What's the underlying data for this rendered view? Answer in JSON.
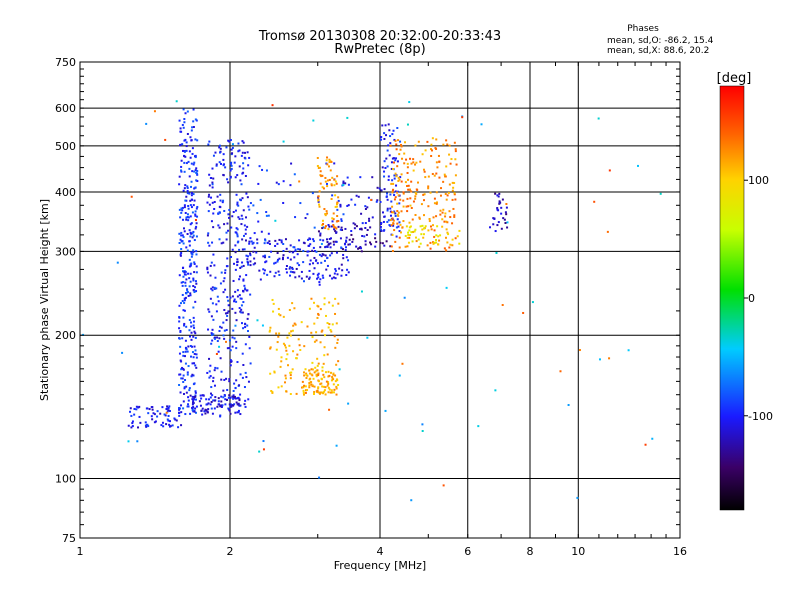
{
  "chart_data": {
    "type": "scatter",
    "title": "Tromsø 20130308 20:32:00-20:33:43",
    "subtitle": "RwPretec (8p)",
    "xlabel": "Frequency [MHz]",
    "ylabel": "Stationary phase Virtual Height [km]",
    "x_scale": "log2",
    "y_scale": "log",
    "xlim": [
      1,
      16
    ],
    "ylim": [
      75,
      750
    ],
    "x_ticks": [
      1,
      2,
      4,
      6,
      8,
      10,
      16
    ],
    "x_tick_labels": [
      "1",
      "2",
      "4",
      "6",
      "8",
      "10",
      "16"
    ],
    "y_ticks": [
      75,
      100,
      200,
      300,
      400,
      500,
      600,
      750
    ],
    "y_tick_labels": [
      "75",
      "100",
      "200",
      "300",
      "400",
      "500",
      "600",
      "750"
    ],
    "grid": true,
    "stats": {
      "heading": "Phases",
      "line_o": "mean, sd,O: -86.2, 15.4",
      "line_x": "mean, sd,X:  88.6, 20.2"
    },
    "colorbar": {
      "label": "[deg]",
      "min": -180,
      "max": 180,
      "ticks": [
        100,
        0,
        -100
      ],
      "tick_labels": [
        "100",
        "0",
        "-100"
      ]
    },
    "clusters": [
      {
        "x": [
          1.58,
          1.72
        ],
        "y": [
          135,
          600
        ],
        "phase": -95,
        "n": 340
      },
      {
        "x": [
          1.8,
          2.2
        ],
        "y": [
          140,
          520
        ],
        "phase": -100,
        "n": 360
      },
      {
        "x": [
          1.25,
          1.6
        ],
        "y": [
          128,
          142
        ],
        "phase": -105,
        "n": 70
      },
      {
        "x": [
          1.65,
          2.1
        ],
        "y": [
          135,
          150
        ],
        "phase": -110,
        "n": 90
      },
      {
        "x": [
          2.05,
          3.5
        ],
        "y": [
          262,
          320
        ],
        "phase": -105,
        "n": 160
      },
      {
        "x": [
          3.0,
          4.2
        ],
        "y": [
          300,
          340
        ],
        "phase": -125,
        "n": 60
      },
      {
        "x": [
          2.2,
          3.4
        ],
        "y": [
          255,
          460
        ],
        "phase": -95,
        "n": 80
      },
      {
        "x": [
          3.3,
          4.0
        ],
        "y": [
          320,
          430
        ],
        "phase": -110,
        "n": 40
      },
      {
        "x": [
          4.0,
          4.4
        ],
        "y": [
          320,
          560
        ],
        "phase": -100,
        "n": 90
      },
      {
        "x": [
          2.4,
          3.3
        ],
        "y": [
          150,
          240
        ],
        "phase": 110,
        "n": 140
      },
      {
        "x": [
          2.8,
          3.3
        ],
        "y": [
          150,
          170
        ],
        "phase": 115,
        "n": 90
      },
      {
        "x": [
          3.0,
          3.3
        ],
        "y": [
          330,
          480
        ],
        "phase": 120,
        "n": 70
      },
      {
        "x": [
          4.2,
          5.7
        ],
        "y": [
          300,
          520
        ],
        "phase": 125,
        "n": 230
      },
      {
        "x": [
          4.5,
          5.8
        ],
        "y": [
          310,
          340
        ],
        "phase": 90,
        "n": 40
      },
      {
        "x": [
          6.6,
          7.2
        ],
        "y": [
          330,
          400
        ],
        "phase": -120,
        "n": 30
      },
      {
        "x": [
          1.0,
          16.0
        ],
        "y": [
          80,
          650
        ],
        "phase": -50,
        "n": 50
      },
      {
        "x": [
          1.2,
          14.0
        ],
        "y": [
          90,
          640
        ],
        "phase": 140,
        "n": 25
      }
    ]
  }
}
